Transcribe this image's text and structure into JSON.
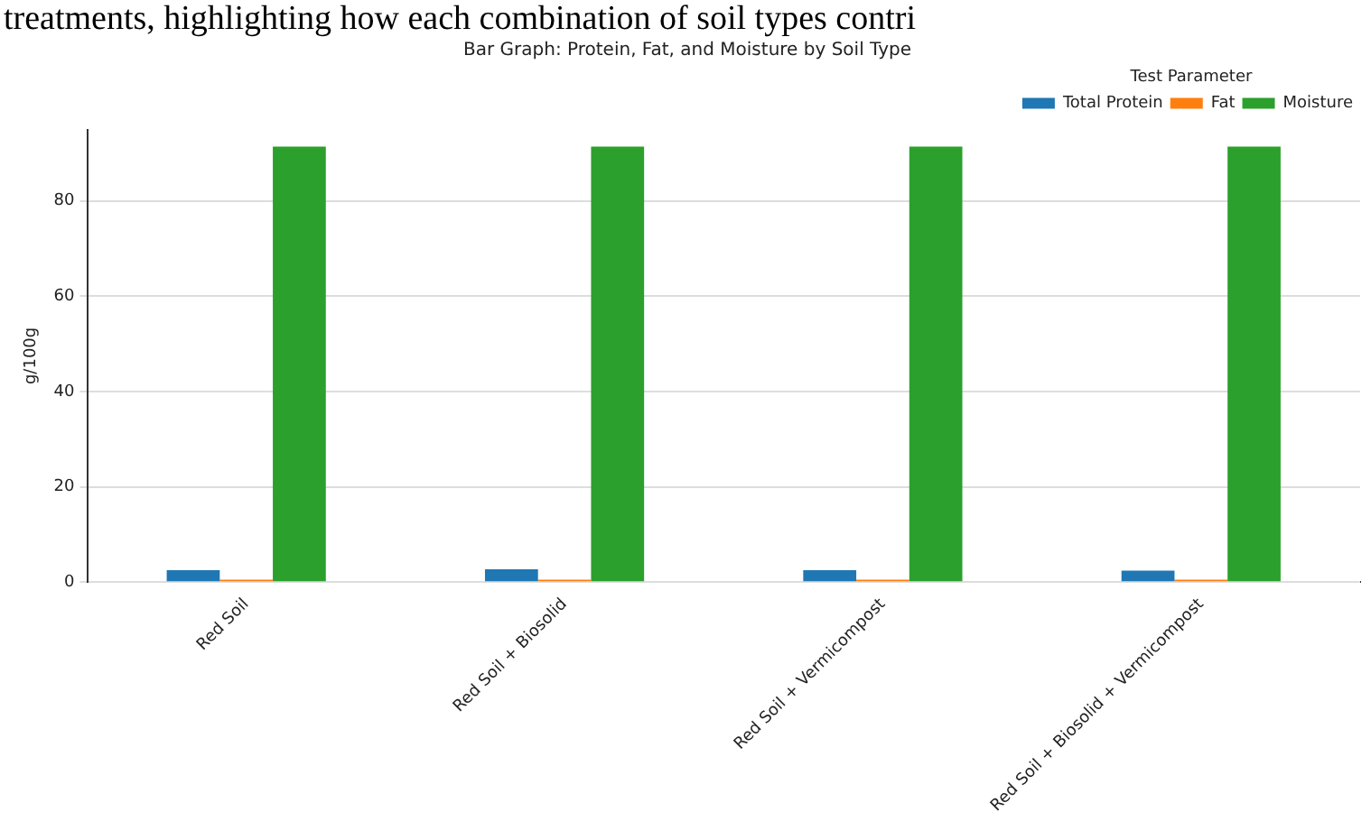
{
  "chart_data": {
    "type": "bar",
    "title": "Bar Graph: Protein, Fat, and Moisture by Soil Type",
    "ylabel": "g/100g",
    "legend_title": "Test Parameter",
    "annotations": [
      "treatments, highlighting how each combination of soil types contri"
    ],
    "categories": [
      "Red Soil",
      "Red Soil + Biosolid",
      "Red Soil + Vermicompost",
      "Red Soil + Biosolid + Vermicompost"
    ],
    "series": [
      {
        "name": "Total Protein",
        "color": "#1f77b4",
        "values": [
          2.5,
          2.7,
          2.5,
          2.4
        ]
      },
      {
        "name": "Fat",
        "color": "#ff7f0e",
        "values": [
          0.5,
          0.5,
          0.5,
          0.5
        ]
      },
      {
        "name": "Moisture",
        "color": "#2ca02c",
        "values": [
          91.4,
          91.4,
          91.4,
          91.4
        ]
      }
    ],
    "ylim": [
      0,
      95
    ],
    "yticks": [
      0,
      20,
      40,
      60,
      80
    ],
    "grid": "y",
    "legend": "top right"
  }
}
